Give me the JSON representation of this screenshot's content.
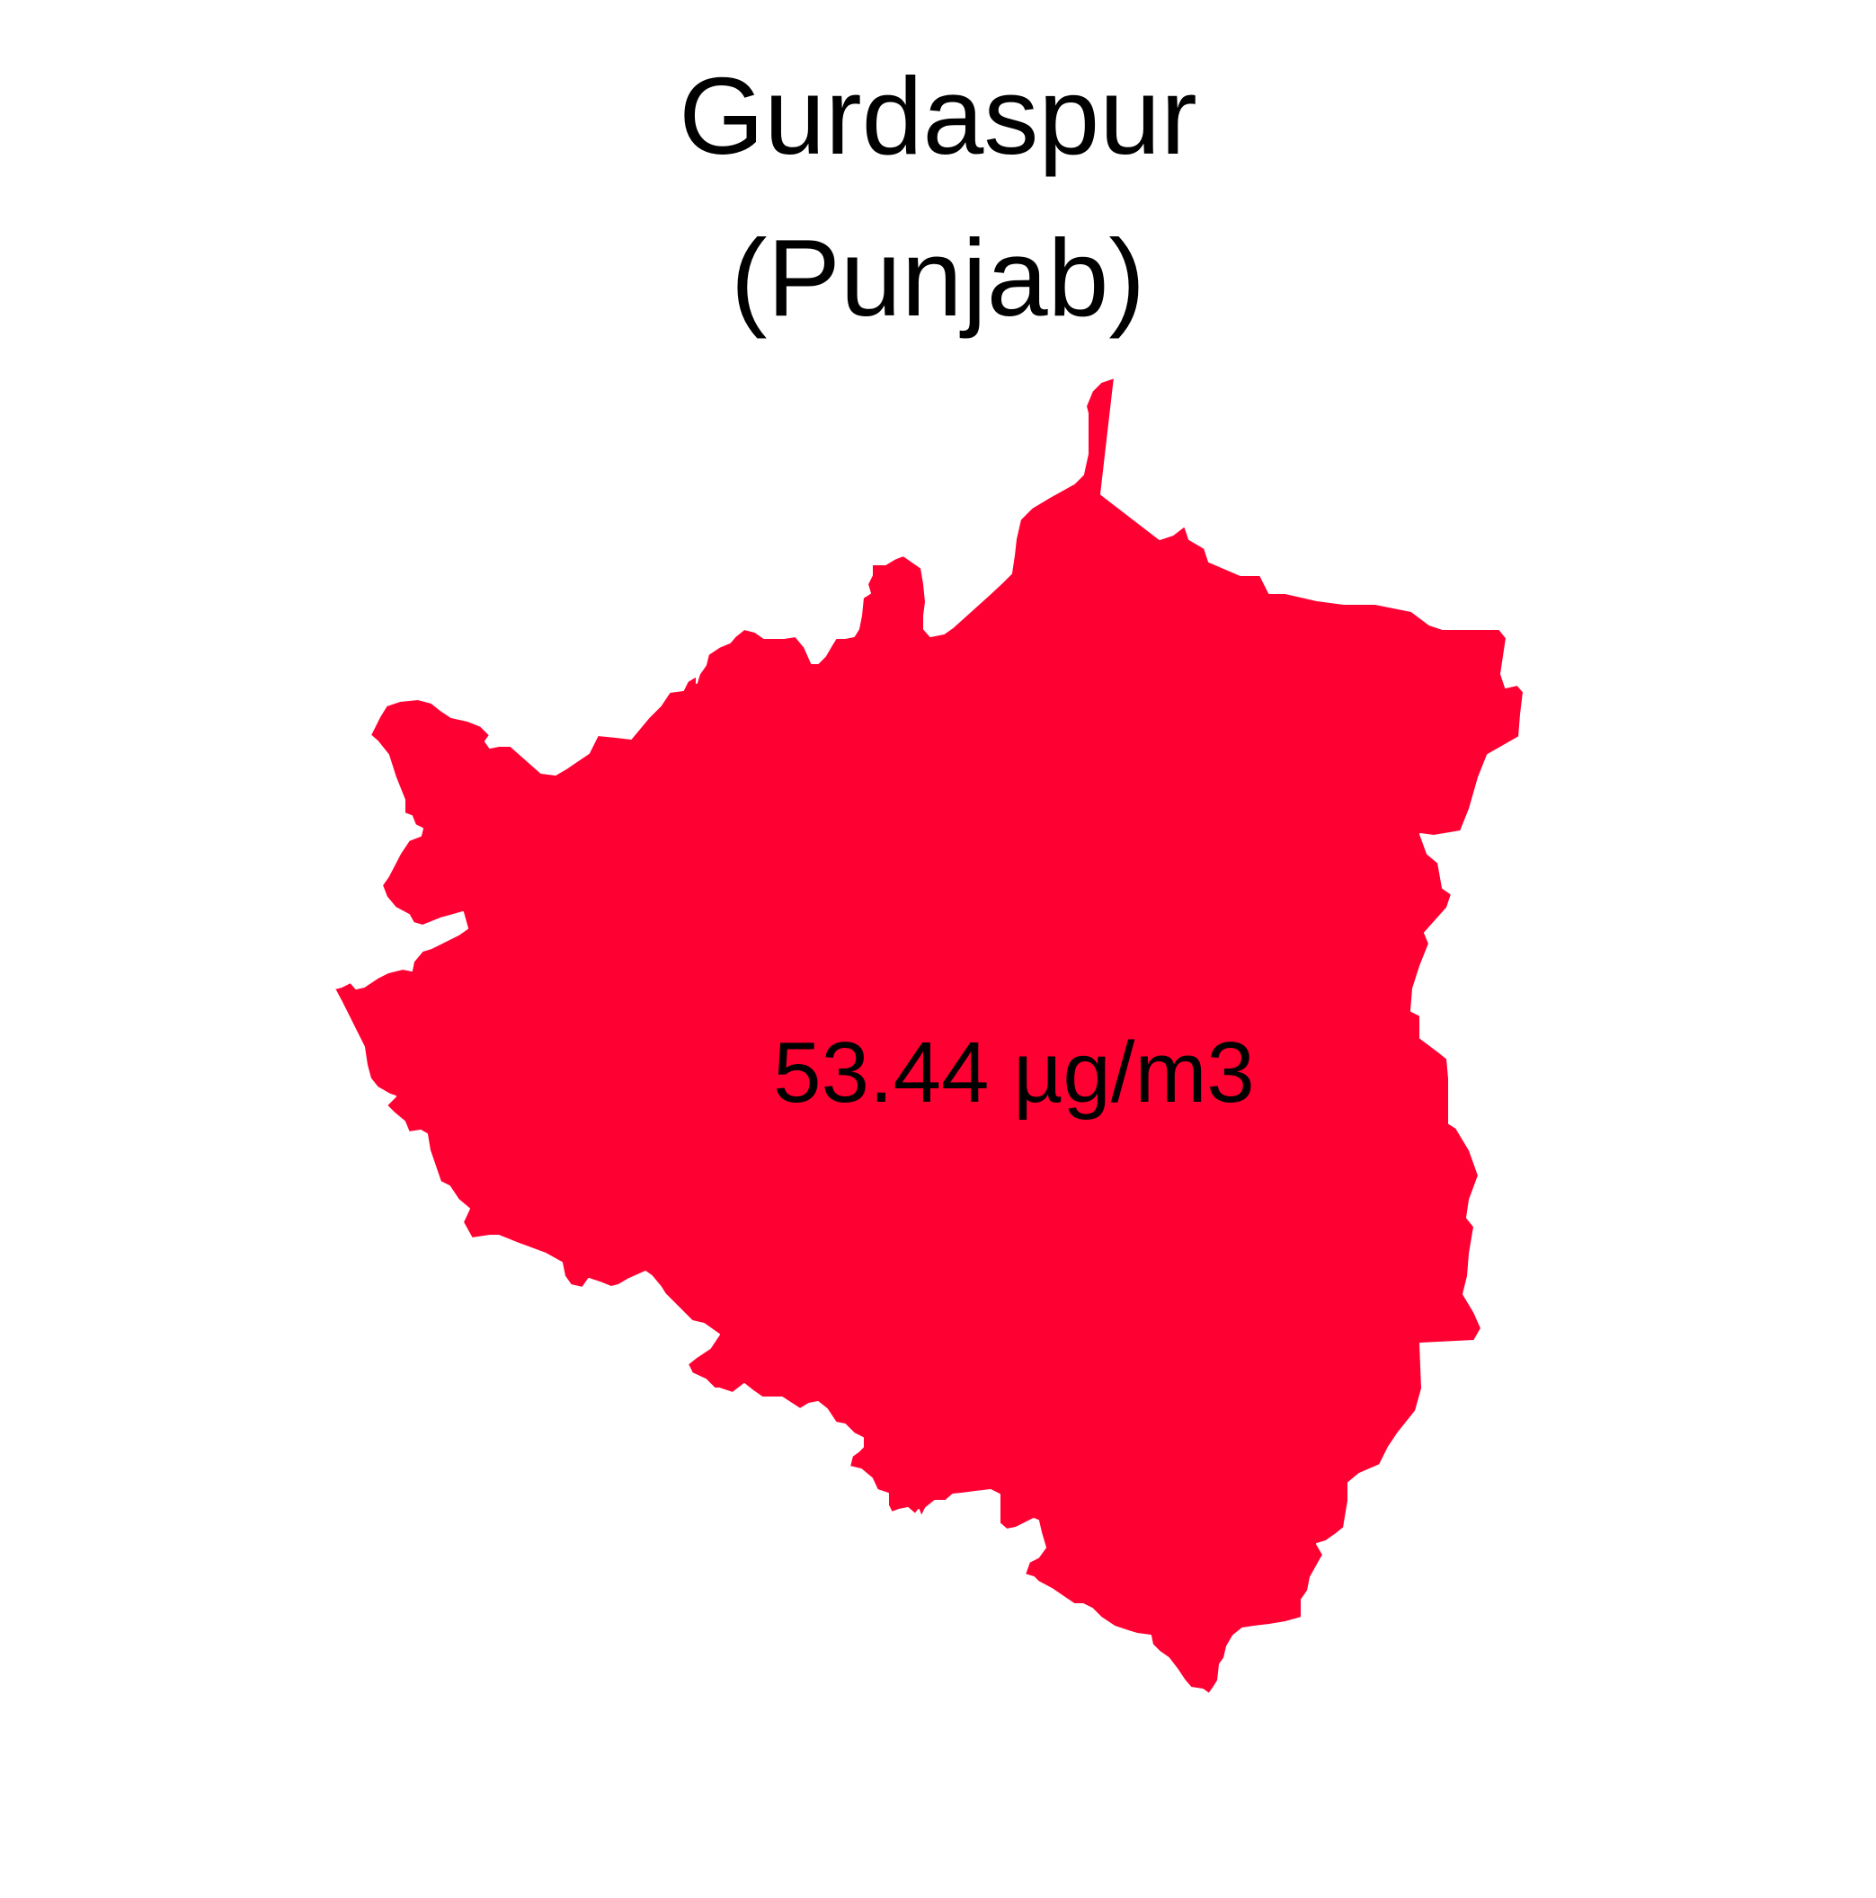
{
  "title": {
    "district": "Gurdaspur",
    "state": "(Punjab)"
  },
  "region": {
    "name": "Gurdaspur",
    "value_label": "53.44 µg/m3",
    "value": 53.44,
    "unit": "µg/m3",
    "fill_color": "#ff0033",
    "border_color": "#ffffff"
  }
}
